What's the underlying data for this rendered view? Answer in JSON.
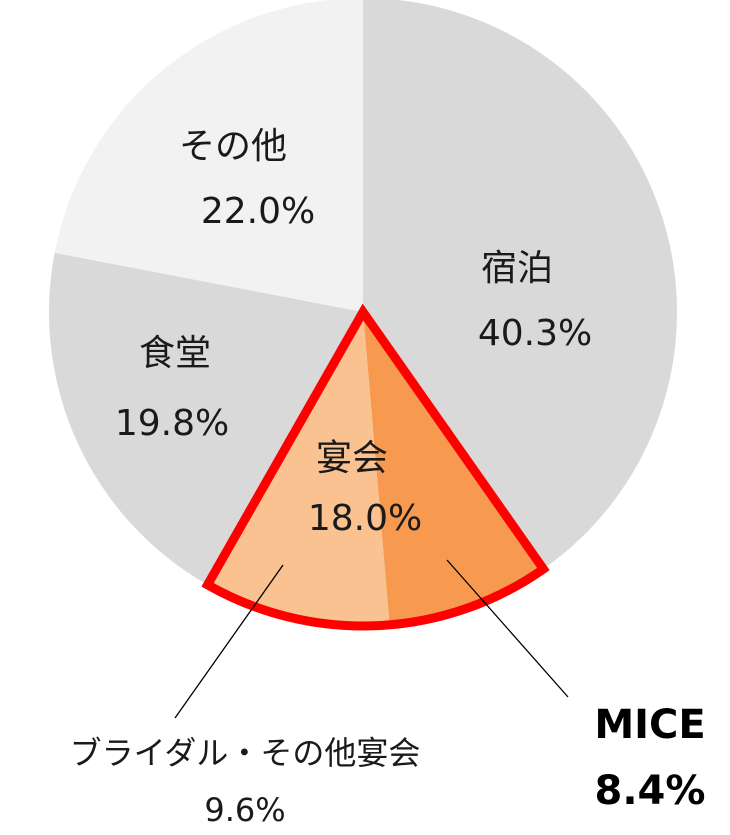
{
  "chart_data": {
    "type": "pie",
    "categories": [
      "宿泊",
      "MICE",
      "ブライダル・その他宴会",
      "食堂",
      "その他"
    ],
    "values": [
      40.3,
      8.4,
      9.6,
      19.8,
      22.0
    ],
    "value_labels": [
      "40.3%",
      "8.4%",
      "9.6%",
      "19.8%",
      "22.0%"
    ],
    "colors": [
      "#d9d9d9",
      "#f79a4f",
      "#fac191",
      "#d9d9d9",
      "#f2f2f2"
    ],
    "groups": [
      {
        "name": "宴会",
        "value": 18.0,
        "value_label": "18.0%",
        "members": [
          1,
          2
        ],
        "color": "#ff0000"
      }
    ]
  }
}
